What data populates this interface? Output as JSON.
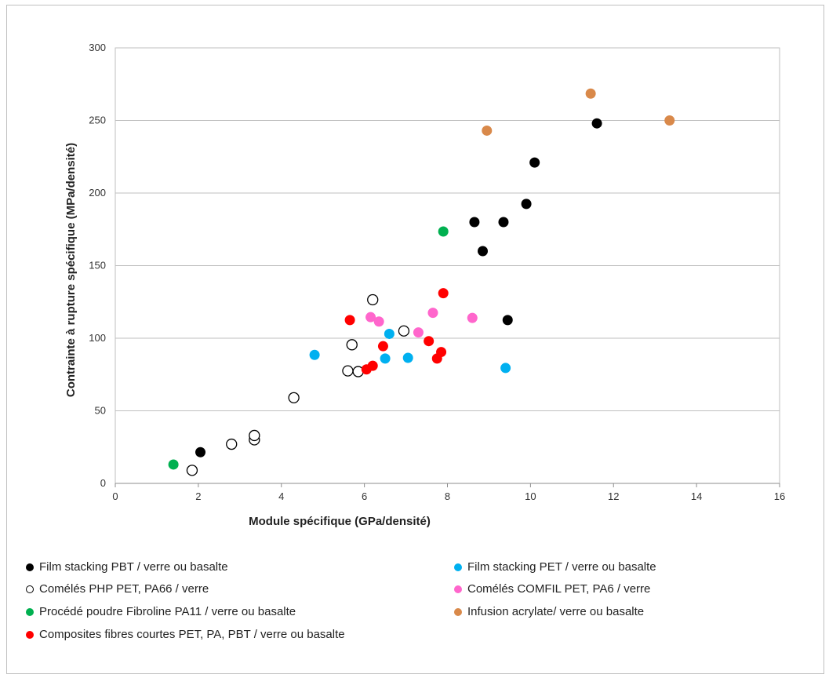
{
  "chart_data": {
    "type": "scatter",
    "xlabel": "Module spécifique (GPa/densité)",
    "ylabel": "Contrainte à rupture spécifique (MPa/densité)",
    "xlim": [
      0,
      16
    ],
    "ylim": [
      0,
      300
    ],
    "x_ticks": [
      "0",
      "2",
      "4",
      "6",
      "8",
      "10",
      "12",
      "14",
      "16"
    ],
    "y_ticks": [
      "0",
      "50",
      "100",
      "150",
      "200",
      "250",
      "300"
    ],
    "grid": "horizontal",
    "legend_position": "bottom",
    "series": [
      {
        "name": "Film stacking PBT / verre ou basalte",
        "color": "#000000",
        "marker": "filled-circle",
        "points": [
          [
            2.05,
            21.5
          ],
          [
            8.65,
            180
          ],
          [
            8.85,
            160
          ],
          [
            9.35,
            180
          ],
          [
            9.45,
            112.5
          ],
          [
            9.9,
            192.5
          ],
          [
            10.1,
            221
          ],
          [
            11.6,
            248
          ]
        ]
      },
      {
        "name": "Comélés PHP PET, PA66 / verre",
        "color": "#000000",
        "marker": "open-circle",
        "points": [
          [
            1.85,
            9
          ],
          [
            2.8,
            27
          ],
          [
            3.35,
            30
          ],
          [
            3.35,
            33
          ],
          [
            4.3,
            59
          ],
          [
            5.6,
            77.5
          ],
          [
            5.85,
            77
          ],
          [
            5.7,
            95.5
          ],
          [
            6.2,
            126.5
          ],
          [
            6.95,
            105
          ]
        ]
      },
      {
        "name": "Procédé poudre Fibroline PA11 / verre ou basalte",
        "color": "#00b050",
        "marker": "filled-circle",
        "points": [
          [
            1.4,
            13
          ],
          [
            7.9,
            173.5
          ]
        ]
      },
      {
        "name": "Composites fibres courtes PET, PA, PBT / verre ou basalte",
        "color": "#ff0000",
        "marker": "filled-circle",
        "points": [
          [
            5.65,
            112.5
          ],
          [
            6.05,
            78.5
          ],
          [
            6.2,
            81
          ],
          [
            6.45,
            94.5
          ],
          [
            7.55,
            98
          ],
          [
            7.75,
            86
          ],
          [
            7.85,
            90.5
          ],
          [
            7.9,
            131
          ]
        ]
      },
      {
        "name": "Film stacking PET / verre ou basalte",
        "color": "#00b0f0",
        "marker": "filled-circle",
        "points": [
          [
            4.8,
            88.5
          ],
          [
            6.5,
            86
          ],
          [
            6.6,
            103
          ],
          [
            7.05,
            86.5
          ],
          [
            9.4,
            79.5
          ]
        ]
      },
      {
        "name": "Comélés COMFIL PET, PA6 / verre",
        "color": "#ff66cc",
        "marker": "filled-circle",
        "points": [
          [
            6.15,
            114.5
          ],
          [
            6.35,
            111.5
          ],
          [
            7.3,
            104
          ],
          [
            7.65,
            117.5
          ],
          [
            8.6,
            114
          ]
        ]
      },
      {
        "name": "Infusion acrylate/ verre ou basalte",
        "color": "#d9894a",
        "marker": "filled-circle",
        "points": [
          [
            8.95,
            243
          ],
          [
            11.45,
            268.5
          ],
          [
            13.35,
            250
          ]
        ]
      }
    ]
  }
}
